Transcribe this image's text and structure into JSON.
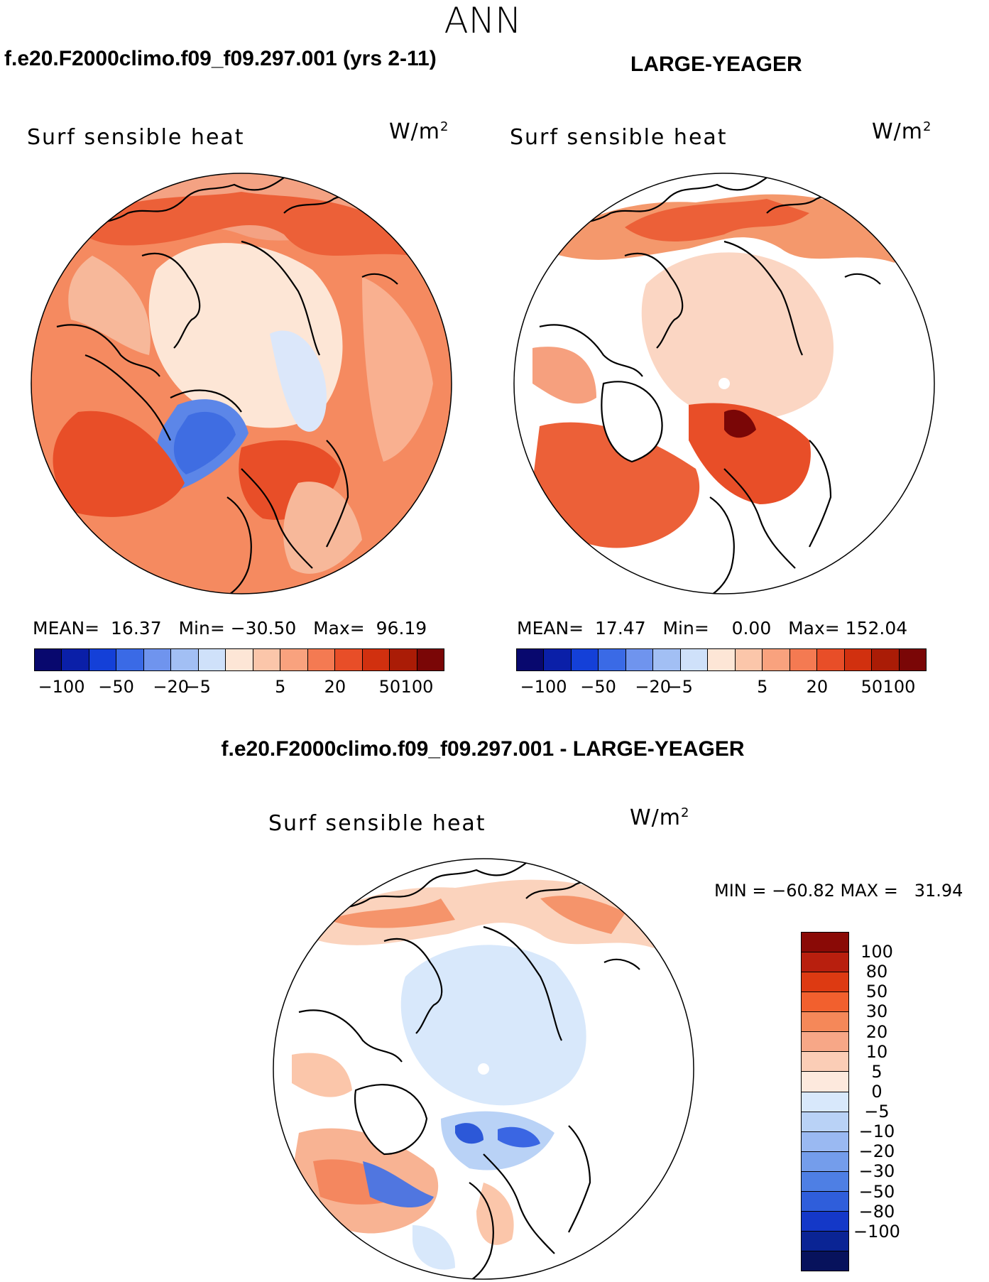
{
  "season": "ANN",
  "panels": {
    "left": {
      "title": "f.e20.F2000climo.f09_f09.297.001 (yrs 2-11)",
      "variable": "Surf sensible heat",
      "units_base": "W/m",
      "units_exp": "2",
      "mean_label": "MEAN=",
      "mean": "16.37",
      "min_label": "Min=",
      "min": "−30.50",
      "max_label": "Max=",
      "max": "96.19"
    },
    "right": {
      "title": "LARGE-YEAGER",
      "variable": "Surf sensible heat",
      "units_base": "W/m",
      "units_exp": "2",
      "mean_label": "MEAN=",
      "mean": "17.47",
      "min_label": "Min=",
      "min": "0.00",
      "max_label": "Max=",
      "max": "152.04"
    },
    "diff": {
      "title": "f.e20.F2000climo.f09_f09.297.001 - LARGE-YEAGER",
      "variable": "Surf sensible heat",
      "units_base": "W/m",
      "units_exp": "2",
      "minmax": "MIN = −60.82 MAX =   31.94"
    }
  },
  "colorbar_h": {
    "colors": [
      "#08086e",
      "#0a1fa8",
      "#1440d8",
      "#3a6ae6",
      "#6f94ee",
      "#a2bff4",
      "#cfe1fa",
      "#fde6d6",
      "#fbc6aa",
      "#f9a27e",
      "#f47a52",
      "#e84e28",
      "#d1300f",
      "#aa1c06",
      "#7a0606"
    ],
    "labels": [
      "−100",
      "−50",
      "−20",
      "−5",
      "5",
      "20",
      "50",
      "100"
    ]
  },
  "colorbar_v": {
    "colors": [
      "#8a0a06",
      "#b81f0e",
      "#dd3a12",
      "#f2602e",
      "#f58859",
      "#f7a787",
      "#fbcdb6",
      "#fde9dd",
      "#d8e8fb",
      "#b9d2f6",
      "#9ab9f2",
      "#749deb",
      "#4e7fe4",
      "#2f5edb",
      "#1438c8",
      "#0a2494",
      "#07125c"
    ],
    "labels": [
      "100",
      "80",
      "50",
      "30",
      "20",
      "10",
      "5",
      "0",
      "−5",
      "−10",
      "−20",
      "−30",
      "−50",
      "−80",
      "−100"
    ]
  }
}
